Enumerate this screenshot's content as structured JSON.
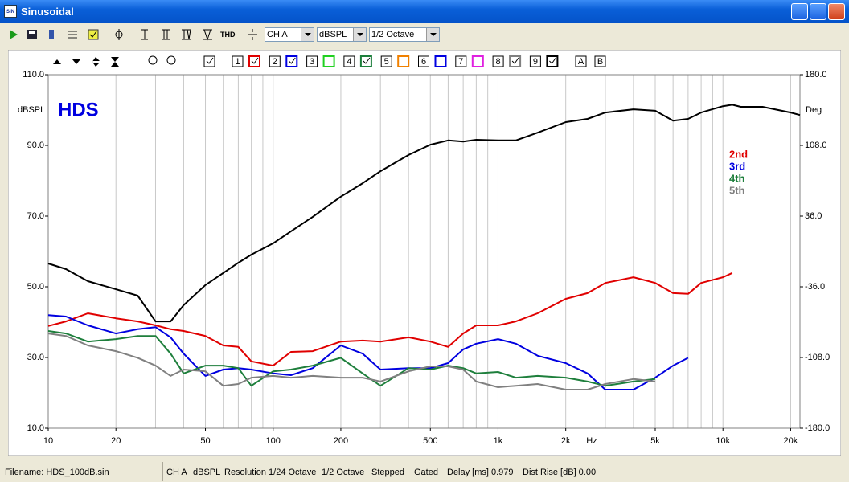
{
  "window": {
    "title": "Sinusoidal",
    "icon": "SIN"
  },
  "toolbar": {
    "thd": "THD",
    "channel": "CH A",
    "unit": "dBSPL",
    "smoothing": "1/2 Octave"
  },
  "curve_selector": {
    "items": [
      "1",
      "2",
      "3",
      "4",
      "5",
      "6",
      "7",
      "8",
      "9"
    ],
    "refs": [
      "A",
      "B"
    ]
  },
  "chart_data": {
    "type": "line",
    "annotation": "HDS",
    "y_label": "dBSPL",
    "y2_label": "Deg",
    "x_label": "Hz",
    "log_x": true,
    "grid": true,
    "xlim": [
      10,
      22000
    ],
    "ylim": [
      10,
      110
    ],
    "y2lim": [
      -180,
      180
    ],
    "xticks": [
      10,
      20,
      50,
      100,
      200,
      500,
      {
        "value": 1000,
        "label": "1k"
      },
      {
        "value": 2000,
        "label": "2k"
      },
      {
        "value": 5000,
        "label": "5k"
      },
      {
        "value": 10000,
        "label": "10k"
      },
      {
        "value": 20000,
        "label": "20k"
      }
    ],
    "x_grid": [
      10,
      20,
      30,
      40,
      50,
      60,
      70,
      80,
      90,
      100,
      200,
      300,
      400,
      500,
      600,
      700,
      800,
      900,
      1000,
      2000,
      3000,
      4000,
      5000,
      6000,
      7000,
      8000,
      9000,
      10000,
      20000
    ],
    "yticks": [
      {
        "value": 110,
        "label": "110.0"
      },
      {
        "value": 90,
        "label": "90.0"
      },
      {
        "value": 70,
        "label": "70.0"
      },
      {
        "value": 50,
        "label": "50.0"
      },
      {
        "value": 30,
        "label": "30.0"
      },
      {
        "value": 10,
        "label": "10.0"
      }
    ],
    "y2ticks": [
      {
        "value": 180,
        "label": "180.0"
      },
      {
        "value": 108,
        "label": "108.0"
      },
      {
        "value": 36,
        "label": "36.0"
      },
      {
        "value": -36,
        "label": "-36.0"
      },
      {
        "value": -108,
        "label": "-108.0"
      },
      {
        "value": -180,
        "label": "-180.0"
      }
    ],
    "x": [
      10,
      12,
      15,
      20,
      25,
      30,
      35,
      40,
      50,
      60,
      70,
      80,
      100,
      120,
      150,
      200,
      250,
      300,
      400,
      500,
      600,
      700,
      800,
      1000,
      1200,
      1500,
      2000,
      2500,
      3000,
      4000,
      5000,
      6000,
      7000,
      8000,
      10000,
      11000,
      12000,
      15000,
      20000,
      22000
    ],
    "series": [
      {
        "color": "#000000",
        "values": [
          56.6,
          55.0,
          51.6,
          49.3,
          47.5,
          40.2,
          40.2,
          44.8,
          50.5,
          53.9,
          56.8,
          59.1,
          62.3,
          65.7,
          69.8,
          75.5,
          79.3,
          82.7,
          87.3,
          90.2,
          91.4,
          91.1,
          91.6,
          91.4,
          91.4,
          93.6,
          96.6,
          97.5,
          99.3,
          100.2,
          99.8,
          97.0,
          97.5,
          99.3,
          101.1,
          101.5,
          100.9,
          100.9,
          99.3,
          98.6
        ]
      },
      {
        "name": "2nd",
        "color": "#e00000",
        "values": [
          38.9,
          40.2,
          42.5,
          41.1,
          40.2,
          39.1,
          38.0,
          37.5,
          36.1,
          33.4,
          33.0,
          28.9,
          27.7,
          31.6,
          31.8,
          34.5,
          34.8,
          34.5,
          35.7,
          34.5,
          33.0,
          36.8,
          39.1,
          39.1,
          40.2,
          42.5,
          46.6,
          48.2,
          51.1,
          52.7,
          51.1,
          48.2,
          48.0,
          51.1,
          52.7,
          53.9,
          null,
          null,
          null,
          null
        ]
      },
      {
        "name": "3rd",
        "color": "#0000e0",
        "values": [
          42.0,
          41.6,
          39.1,
          36.8,
          38.0,
          38.6,
          35.7,
          31.1,
          24.8,
          26.6,
          27.0,
          26.6,
          25.5,
          25.0,
          27.0,
          33.4,
          31.1,
          26.6,
          27.0,
          27.0,
          28.4,
          32.3,
          33.9,
          35.2,
          33.9,
          30.5,
          28.4,
          25.5,
          20.9,
          20.9,
          24.3,
          27.7,
          29.9,
          null,
          null,
          null,
          null,
          null,
          null,
          null
        ]
      },
      {
        "name": "4th",
        "color": "#1e7f3c",
        "values": [
          37.5,
          36.8,
          34.5,
          35.2,
          36.1,
          36.1,
          31.1,
          25.5,
          27.7,
          27.7,
          27.0,
          22.0,
          26.1,
          26.6,
          27.7,
          29.9,
          25.5,
          22.0,
          27.0,
          26.6,
          27.7,
          27.0,
          25.5,
          25.9,
          24.3,
          24.8,
          24.3,
          23.2,
          22.0,
          23.2,
          23.9,
          null,
          null,
          null,
          null,
          null,
          null,
          null,
          null,
          null
        ]
      },
      {
        "name": "5th",
        "color": "#808080",
        "values": [
          36.8,
          36.1,
          33.4,
          31.8,
          29.9,
          27.7,
          24.8,
          26.6,
          26.1,
          22.0,
          22.5,
          24.3,
          24.8,
          24.3,
          24.8,
          24.3,
          24.3,
          23.2,
          26.1,
          27.5,
          27.5,
          26.6,
          23.2,
          21.6,
          22.0,
          22.5,
          20.9,
          20.9,
          22.5,
          23.9,
          23.2,
          null,
          null,
          null,
          null,
          null,
          null,
          null,
          null,
          null
        ]
      }
    ]
  },
  "status_bar": {
    "filename": "Filename: HDS_100dB.sin",
    "fields": [
      "CH A",
      "dBSPL",
      "Resolution 1/24 Octave",
      "1/2 Octave",
      "Stepped",
      "Gated",
      "Delay [ms] 0.979",
      "Dist Rise [dB] 0.00"
    ]
  }
}
